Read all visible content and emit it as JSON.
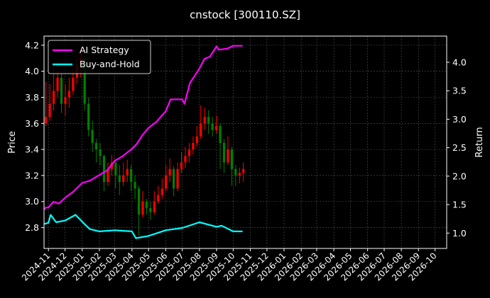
{
  "chart_data": {
    "type": "candlestick+line",
    "title": "cnstock [300110.SZ]",
    "ylabel_left": "Price",
    "ylabel_right": "Return",
    "xlim": [
      "2024-10-24",
      "2026-10-22"
    ],
    "ylim_left": [
      2.64,
      4.27
    ],
    "ylim_right": [
      0.73,
      4.46
    ],
    "grid": true,
    "legend_placement": "top-left",
    "x_ticks": [
      "2024-11",
      "2024-12",
      "2025-01",
      "2025-02",
      "2025-03",
      "2025-04",
      "2025-05",
      "2025-06",
      "2025-07",
      "2025-08",
      "2025-09",
      "2025-10",
      "2025-11",
      "2025-12",
      "2026-01",
      "2026-02",
      "2026-03",
      "2026-04",
      "2026-05",
      "2026-06",
      "2026-07",
      "2026-08",
      "2026-09",
      "2026-10"
    ],
    "y_ticks_left": [
      "2.8",
      "3.0",
      "3.2",
      "3.4",
      "3.6",
      "3.8",
      "4.0",
      "4.2"
    ],
    "y_ticks_right": [
      "1.0",
      "1.5",
      "2.0",
      "2.5",
      "3.0",
      "3.5",
      "4.0"
    ],
    "colors": {
      "up": "#ff0000",
      "down": "#008000",
      "strategy": "#ff00ff",
      "buy_hold": "#00ffff",
      "background": "#000000",
      "grid": "#555555"
    },
    "candles_columns": [
      "date",
      "open",
      "high",
      "low",
      "close"
    ],
    "candles": [
      [
        "2024-10-24",
        3.6,
        3.92,
        3.58,
        3.65
      ],
      [
        "2024-10-31",
        3.65,
        3.9,
        3.62,
        3.75
      ],
      [
        "2024-11-07",
        3.75,
        4.05,
        3.7,
        3.85
      ],
      [
        "2024-11-14",
        3.85,
        4.0,
        3.8,
        3.95
      ],
      [
        "2024-11-21",
        3.95,
        3.98,
        3.68,
        3.75
      ],
      [
        "2024-11-28",
        3.75,
        3.9,
        3.66,
        3.8
      ],
      [
        "2024-12-05",
        3.8,
        3.95,
        3.72,
        3.85
      ],
      [
        "2024-12-12",
        3.85,
        4.02,
        3.82,
        3.95
      ],
      [
        "2024-12-19",
        3.95,
        4.12,
        3.9,
        4.05
      ],
      [
        "2024-12-26",
        4.05,
        4.18,
        3.95,
        4.1
      ],
      [
        "2025-01-02",
        4.1,
        4.12,
        3.7,
        3.75
      ],
      [
        "2025-01-09",
        3.75,
        3.8,
        3.5,
        3.55
      ],
      [
        "2025-01-16",
        3.55,
        3.62,
        3.38,
        3.45
      ],
      [
        "2025-01-23",
        3.45,
        3.48,
        3.3,
        3.4
      ],
      [
        "2025-01-30",
        3.4,
        3.45,
        3.28,
        3.35
      ],
      [
        "2025-02-06",
        3.35,
        3.36,
        3.08,
        3.15
      ],
      [
        "2025-02-13",
        3.15,
        3.3,
        3.12,
        3.25
      ],
      [
        "2025-02-20",
        3.25,
        3.36,
        3.2,
        3.3
      ],
      [
        "2025-02-27",
        3.3,
        3.32,
        3.1,
        3.2
      ],
      [
        "2025-03-06",
        3.2,
        3.28,
        3.05,
        3.15
      ],
      [
        "2025-03-13",
        3.15,
        3.3,
        3.12,
        3.2
      ],
      [
        "2025-03-20",
        3.2,
        3.32,
        3.15,
        3.25
      ],
      [
        "2025-03-27",
        3.25,
        3.28,
        3.08,
        3.15
      ],
      [
        "2025-04-03",
        3.15,
        3.2,
        3.02,
        3.1
      ],
      [
        "2025-04-10",
        3.1,
        3.12,
        2.74,
        2.9
      ],
      [
        "2025-04-17",
        2.9,
        3.08,
        2.88,
        3.0
      ],
      [
        "2025-04-24",
        3.0,
        3.02,
        2.9,
        2.95
      ],
      [
        "2025-05-01",
        2.95,
        3.0,
        2.86,
        2.92
      ],
      [
        "2025-05-08",
        2.92,
        3.08,
        2.9,
        3.0
      ],
      [
        "2025-05-15",
        3.0,
        3.12,
        2.98,
        3.05
      ],
      [
        "2025-05-22",
        3.05,
        3.18,
        3.02,
        3.1
      ],
      [
        "2025-05-29",
        3.1,
        3.28,
        3.08,
        3.2
      ],
      [
        "2025-06-05",
        3.2,
        3.33,
        3.15,
        3.25
      ],
      [
        "2025-06-12",
        3.25,
        3.27,
        3.04,
        3.1
      ],
      [
        "2025-06-19",
        3.1,
        3.3,
        3.08,
        3.25
      ],
      [
        "2025-06-26",
        3.25,
        3.38,
        3.22,
        3.3
      ],
      [
        "2025-07-03",
        3.3,
        3.42,
        3.26,
        3.35
      ],
      [
        "2025-07-10",
        3.35,
        3.45,
        3.3,
        3.4
      ],
      [
        "2025-07-17",
        3.4,
        3.5,
        3.36,
        3.45
      ],
      [
        "2025-07-24",
        3.45,
        3.58,
        3.42,
        3.5
      ],
      [
        "2025-07-31",
        3.5,
        3.74,
        3.48,
        3.6
      ],
      [
        "2025-08-07",
        3.6,
        3.72,
        3.55,
        3.65
      ],
      [
        "2025-08-14",
        3.65,
        3.7,
        3.52,
        3.6
      ],
      [
        "2025-08-21",
        3.6,
        3.65,
        3.5,
        3.55
      ],
      [
        "2025-08-28",
        3.55,
        3.66,
        3.52,
        3.58
      ],
      [
        "2025-09-04",
        3.58,
        3.6,
        3.25,
        3.45
      ],
      [
        "2025-09-11",
        3.45,
        3.48,
        3.22,
        3.3
      ],
      [
        "2025-09-18",
        3.3,
        3.5,
        3.28,
        3.4
      ],
      [
        "2025-09-25",
        3.4,
        3.42,
        3.12,
        3.25
      ],
      [
        "2025-10-02",
        3.25,
        3.28,
        3.12,
        3.2
      ],
      [
        "2025-10-09",
        3.2,
        3.26,
        3.14,
        3.22
      ],
      [
        "2025-10-16",
        3.22,
        3.3,
        3.15,
        3.25
      ]
    ],
    "series": [
      {
        "name": "AI Strategy",
        "axis": "right",
        "points": [
          [
            "2024-10-24",
            1.42
          ],
          [
            "2024-10-28",
            1.45
          ],
          [
            "2024-11-01",
            1.45
          ],
          [
            "2024-11-10",
            1.55
          ],
          [
            "2024-11-20",
            1.52
          ],
          [
            "2024-12-01",
            1.62
          ],
          [
            "2024-12-15",
            1.72
          ],
          [
            "2025-01-01",
            1.88
          ],
          [
            "2025-01-15",
            1.92
          ],
          [
            "2025-02-01",
            2.02
          ],
          [
            "2025-02-15",
            2.1
          ],
          [
            "2025-03-01",
            2.27
          ],
          [
            "2025-03-15",
            2.35
          ],
          [
            "2025-04-01",
            2.48
          ],
          [
            "2025-04-10",
            2.57
          ],
          [
            "2025-04-20",
            2.72
          ],
          [
            "2025-05-01",
            2.85
          ],
          [
            "2025-05-15",
            2.95
          ],
          [
            "2025-06-01",
            3.14
          ],
          [
            "2025-06-10",
            3.35
          ],
          [
            "2025-07-01",
            3.35
          ],
          [
            "2025-07-05",
            3.27
          ],
          [
            "2025-07-15",
            3.64
          ],
          [
            "2025-08-01",
            3.89
          ],
          [
            "2025-08-10",
            4.06
          ],
          [
            "2025-08-20",
            4.1
          ],
          [
            "2025-09-01",
            4.28
          ],
          [
            "2025-09-05",
            4.22
          ],
          [
            "2025-09-20",
            4.24
          ],
          [
            "2025-10-01",
            4.29
          ],
          [
            "2025-10-18",
            4.29
          ]
        ]
      },
      {
        "name": "Buy-and-Hold",
        "axis": "right",
        "points": [
          [
            "2024-10-24",
            1.16
          ],
          [
            "2024-11-01",
            1.18
          ],
          [
            "2024-11-05",
            1.32
          ],
          [
            "2024-11-15",
            1.19
          ],
          [
            "2024-12-01",
            1.22
          ],
          [
            "2024-12-20",
            1.32
          ],
          [
            "2025-01-05",
            1.16
          ],
          [
            "2025-01-15",
            1.07
          ],
          [
            "2025-02-01",
            1.03
          ],
          [
            "2025-03-01",
            1.05
          ],
          [
            "2025-04-01",
            1.03
          ],
          [
            "2025-04-08",
            0.91
          ],
          [
            "2025-05-01",
            0.95
          ],
          [
            "2025-06-01",
            1.05
          ],
          [
            "2025-07-01",
            1.09
          ],
          [
            "2025-08-01",
            1.19
          ],
          [
            "2025-09-01",
            1.11
          ],
          [
            "2025-09-10",
            1.13
          ],
          [
            "2025-10-01",
            1.03
          ],
          [
            "2025-10-18",
            1.03
          ]
        ]
      }
    ]
  }
}
